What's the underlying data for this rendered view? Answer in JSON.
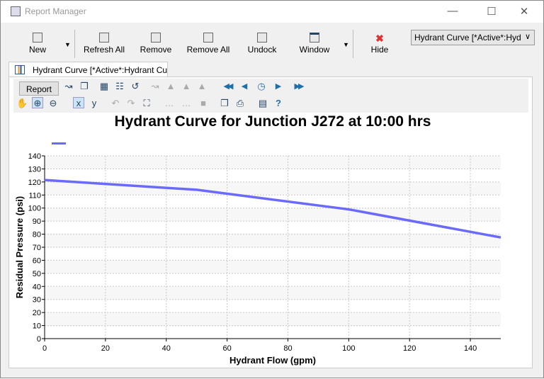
{
  "window": {
    "title": "Report Manager"
  },
  "ribbon": {
    "buttons": [
      "New",
      "Refresh All",
      "Remove",
      "Remove All",
      "Undock",
      "Window",
      "Hide"
    ],
    "combo_value": "Hydrant Curve [*Active*:Hydrant"
  },
  "tab": {
    "label": "Hydrant Curve [*Active*:Hydrant Curve]"
  },
  "toolbar": {
    "report_label": "Report"
  },
  "colors": {
    "series": "#6a6aff",
    "accent": "#1f6fa8"
  },
  "chart_data": {
    "type": "line",
    "title": "Hydrant Curve for Junction J272 at 10:00 hrs",
    "xlabel": "Hydrant Flow (gpm)",
    "ylabel": "Residual Pressure (psi)",
    "xlim": [
      0,
      150
    ],
    "ylim": [
      0,
      140
    ],
    "xticks": [
      0,
      20,
      40,
      60,
      80,
      100,
      120,
      140
    ],
    "yticks": [
      0,
      10,
      20,
      30,
      40,
      50,
      60,
      70,
      80,
      90,
      100,
      110,
      120,
      130,
      140
    ],
    "grid": true,
    "legend": "top-left",
    "series": [
      {
        "x": [
          0,
          50,
          100,
          150
        ],
        "y": [
          121.5,
          114,
          99,
          77.5
        ]
      }
    ]
  }
}
